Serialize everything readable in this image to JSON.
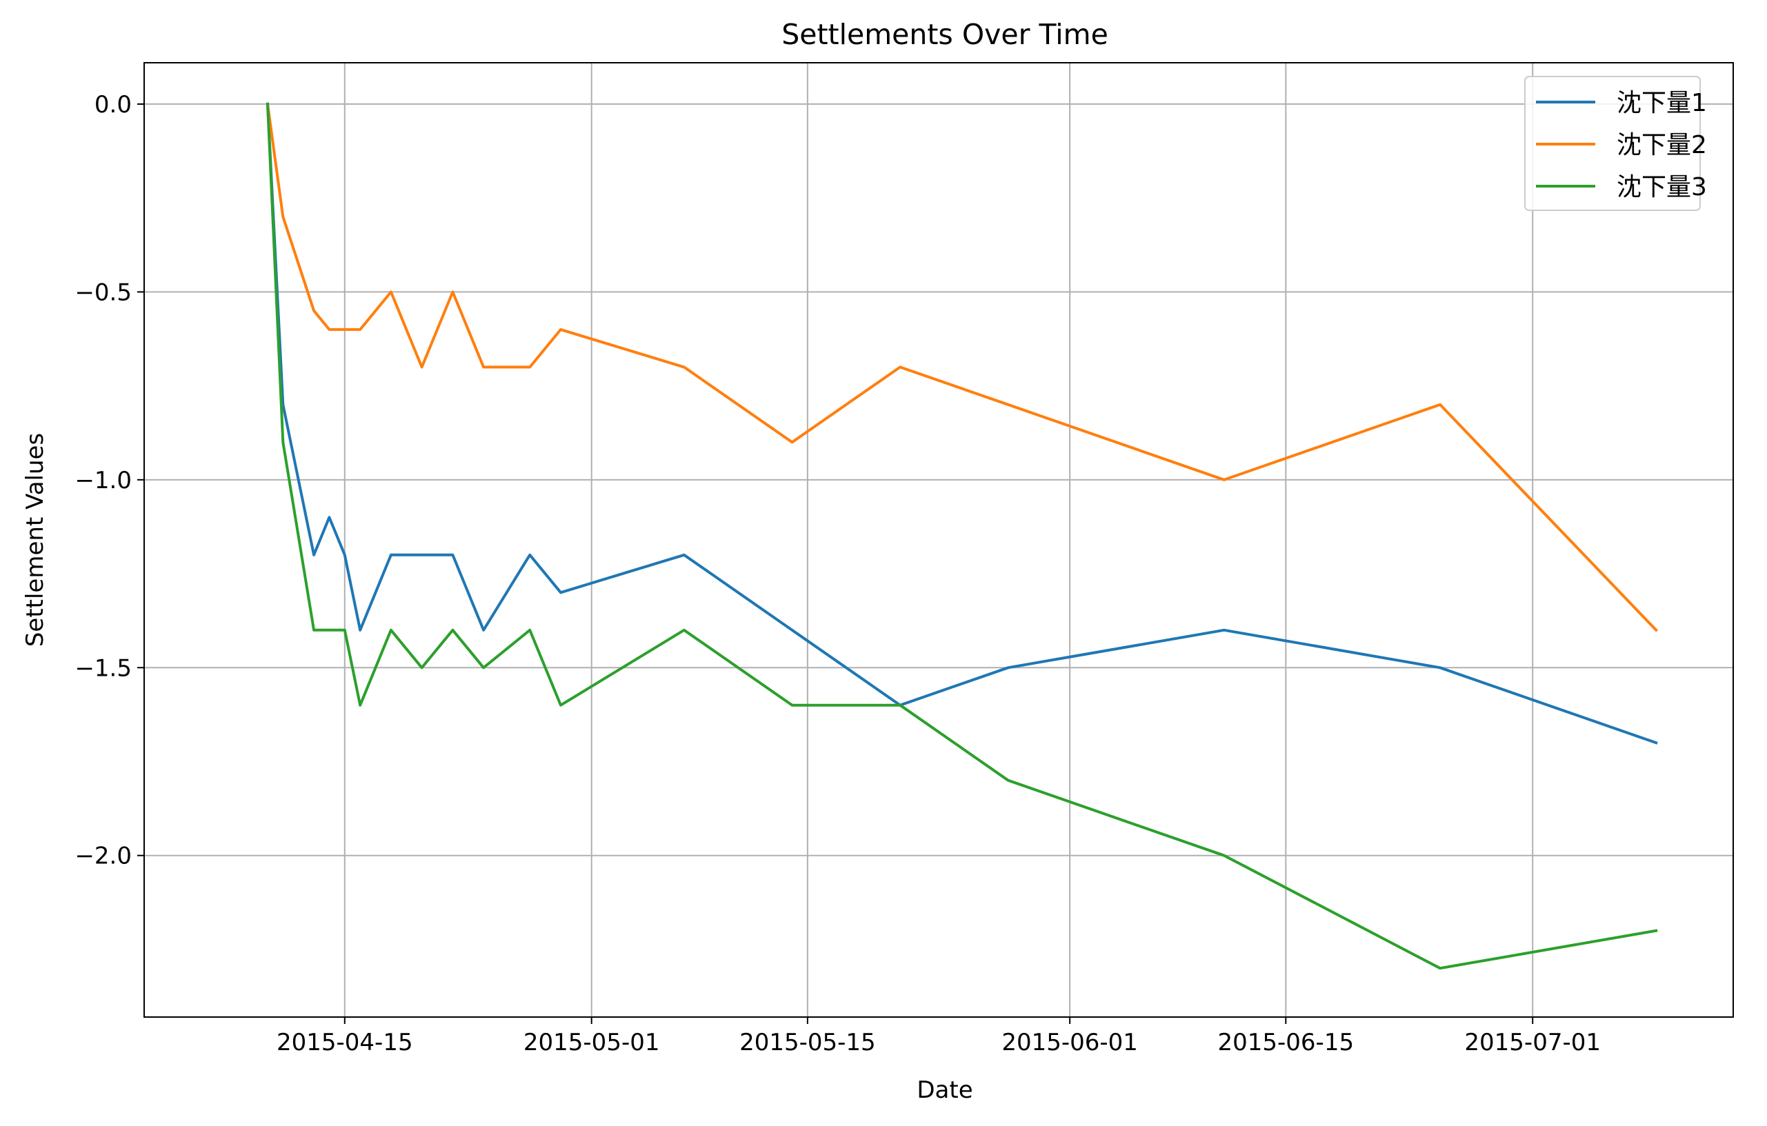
{
  "chart_data": {
    "type": "line",
    "title": "Settlements Over Time",
    "xlabel": "Date",
    "ylabel": "Settlement Values",
    "x_type": "date",
    "xlim": [
      "2015-04-02",
      "2015-07-14"
    ],
    "ylim": [
      -2.43,
      0.11
    ],
    "x_ticks": [
      "2015-04-15",
      "2015-05-01",
      "2015-05-15",
      "2015-06-01",
      "2015-06-15",
      "2015-07-01"
    ],
    "y_ticks": [
      0.0,
      -0.5,
      -1.0,
      -1.5,
      -2.0
    ],
    "y_tick_labels": [
      "0.0",
      "−0.5",
      "−1.0",
      "−1.5",
      "−2.0"
    ],
    "grid": true,
    "legend_position": "top-right",
    "x": [
      "2015-04-10",
      "2015-04-11",
      "2015-04-13",
      "2015-04-14",
      "2015-04-15",
      "2015-04-16",
      "2015-04-18",
      "2015-04-20",
      "2015-04-22",
      "2015-04-24",
      "2015-04-27",
      "2015-04-29",
      "2015-05-07",
      "2015-05-14",
      "2015-05-21",
      "2015-05-28",
      "2015-06-11",
      "2015-06-25",
      "2015-07-09"
    ],
    "series": [
      {
        "name": "沈下量1",
        "color": "#1f77b4",
        "values": [
          0.0,
          -0.8,
          -1.2,
          -1.1,
          -1.2,
          -1.4,
          -1.2,
          -1.2,
          -1.2,
          -1.4,
          -1.2,
          -1.3,
          -1.2,
          -1.4,
          -1.6,
          -1.5,
          -1.4,
          -1.5,
          -1.7
        ]
      },
      {
        "name": "沈下量2",
        "color": "#ff7f0e",
        "values": [
          0.0,
          -0.3,
          -0.55,
          -0.6,
          -0.6,
          -0.6,
          -0.5,
          -0.7,
          -0.5,
          -0.7,
          -0.7,
          -0.6,
          -0.7,
          -0.9,
          -0.7,
          -0.8,
          -1.0,
          -0.8,
          -1.4
        ]
      },
      {
        "name": "沈下量3",
        "color": "#2ca02c",
        "values": [
          0.0,
          -0.9,
          -1.4,
          -1.4,
          -1.4,
          -1.6,
          -1.4,
          -1.5,
          -1.4,
          -1.5,
          -1.4,
          -1.6,
          -1.4,
          -1.6,
          -1.6,
          -1.8,
          -2.0,
          -2.3,
          -2.2
        ]
      }
    ]
  }
}
